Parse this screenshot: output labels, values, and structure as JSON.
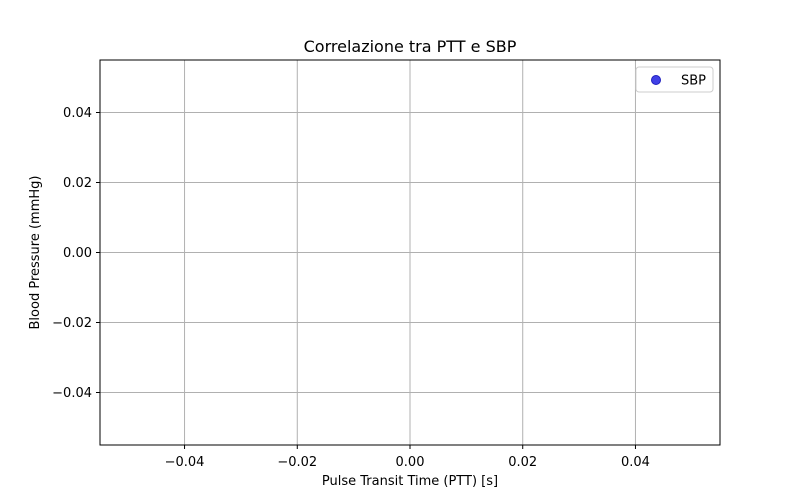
{
  "chart_data": {
    "type": "scatter",
    "title": "Correlazione tra PTT e SBP",
    "xlabel": "Pulse Transit Time (PTT) [s]",
    "ylabel": "Blood Pressure (mmHg)",
    "xlim": [
      -0.055,
      0.055
    ],
    "ylim": [
      -0.055,
      0.055
    ],
    "x_ticks": [
      -0.04,
      -0.02,
      0.0,
      0.02,
      0.04
    ],
    "x_tick_labels": [
      "−0.04",
      "−0.02",
      "0.00",
      "0.02",
      "0.04"
    ],
    "y_ticks": [
      0.04,
      0.02,
      0.0,
      -0.02,
      -0.04
    ],
    "y_tick_labels": [
      "0.04",
      "0.02",
      "0.00",
      "−0.02",
      "−0.04"
    ],
    "grid": true,
    "legend_position": "top-right",
    "series": [
      {
        "name": "SBP",
        "color": "#4040e6",
        "edge_color": "#2020c0",
        "points": []
      }
    ]
  }
}
